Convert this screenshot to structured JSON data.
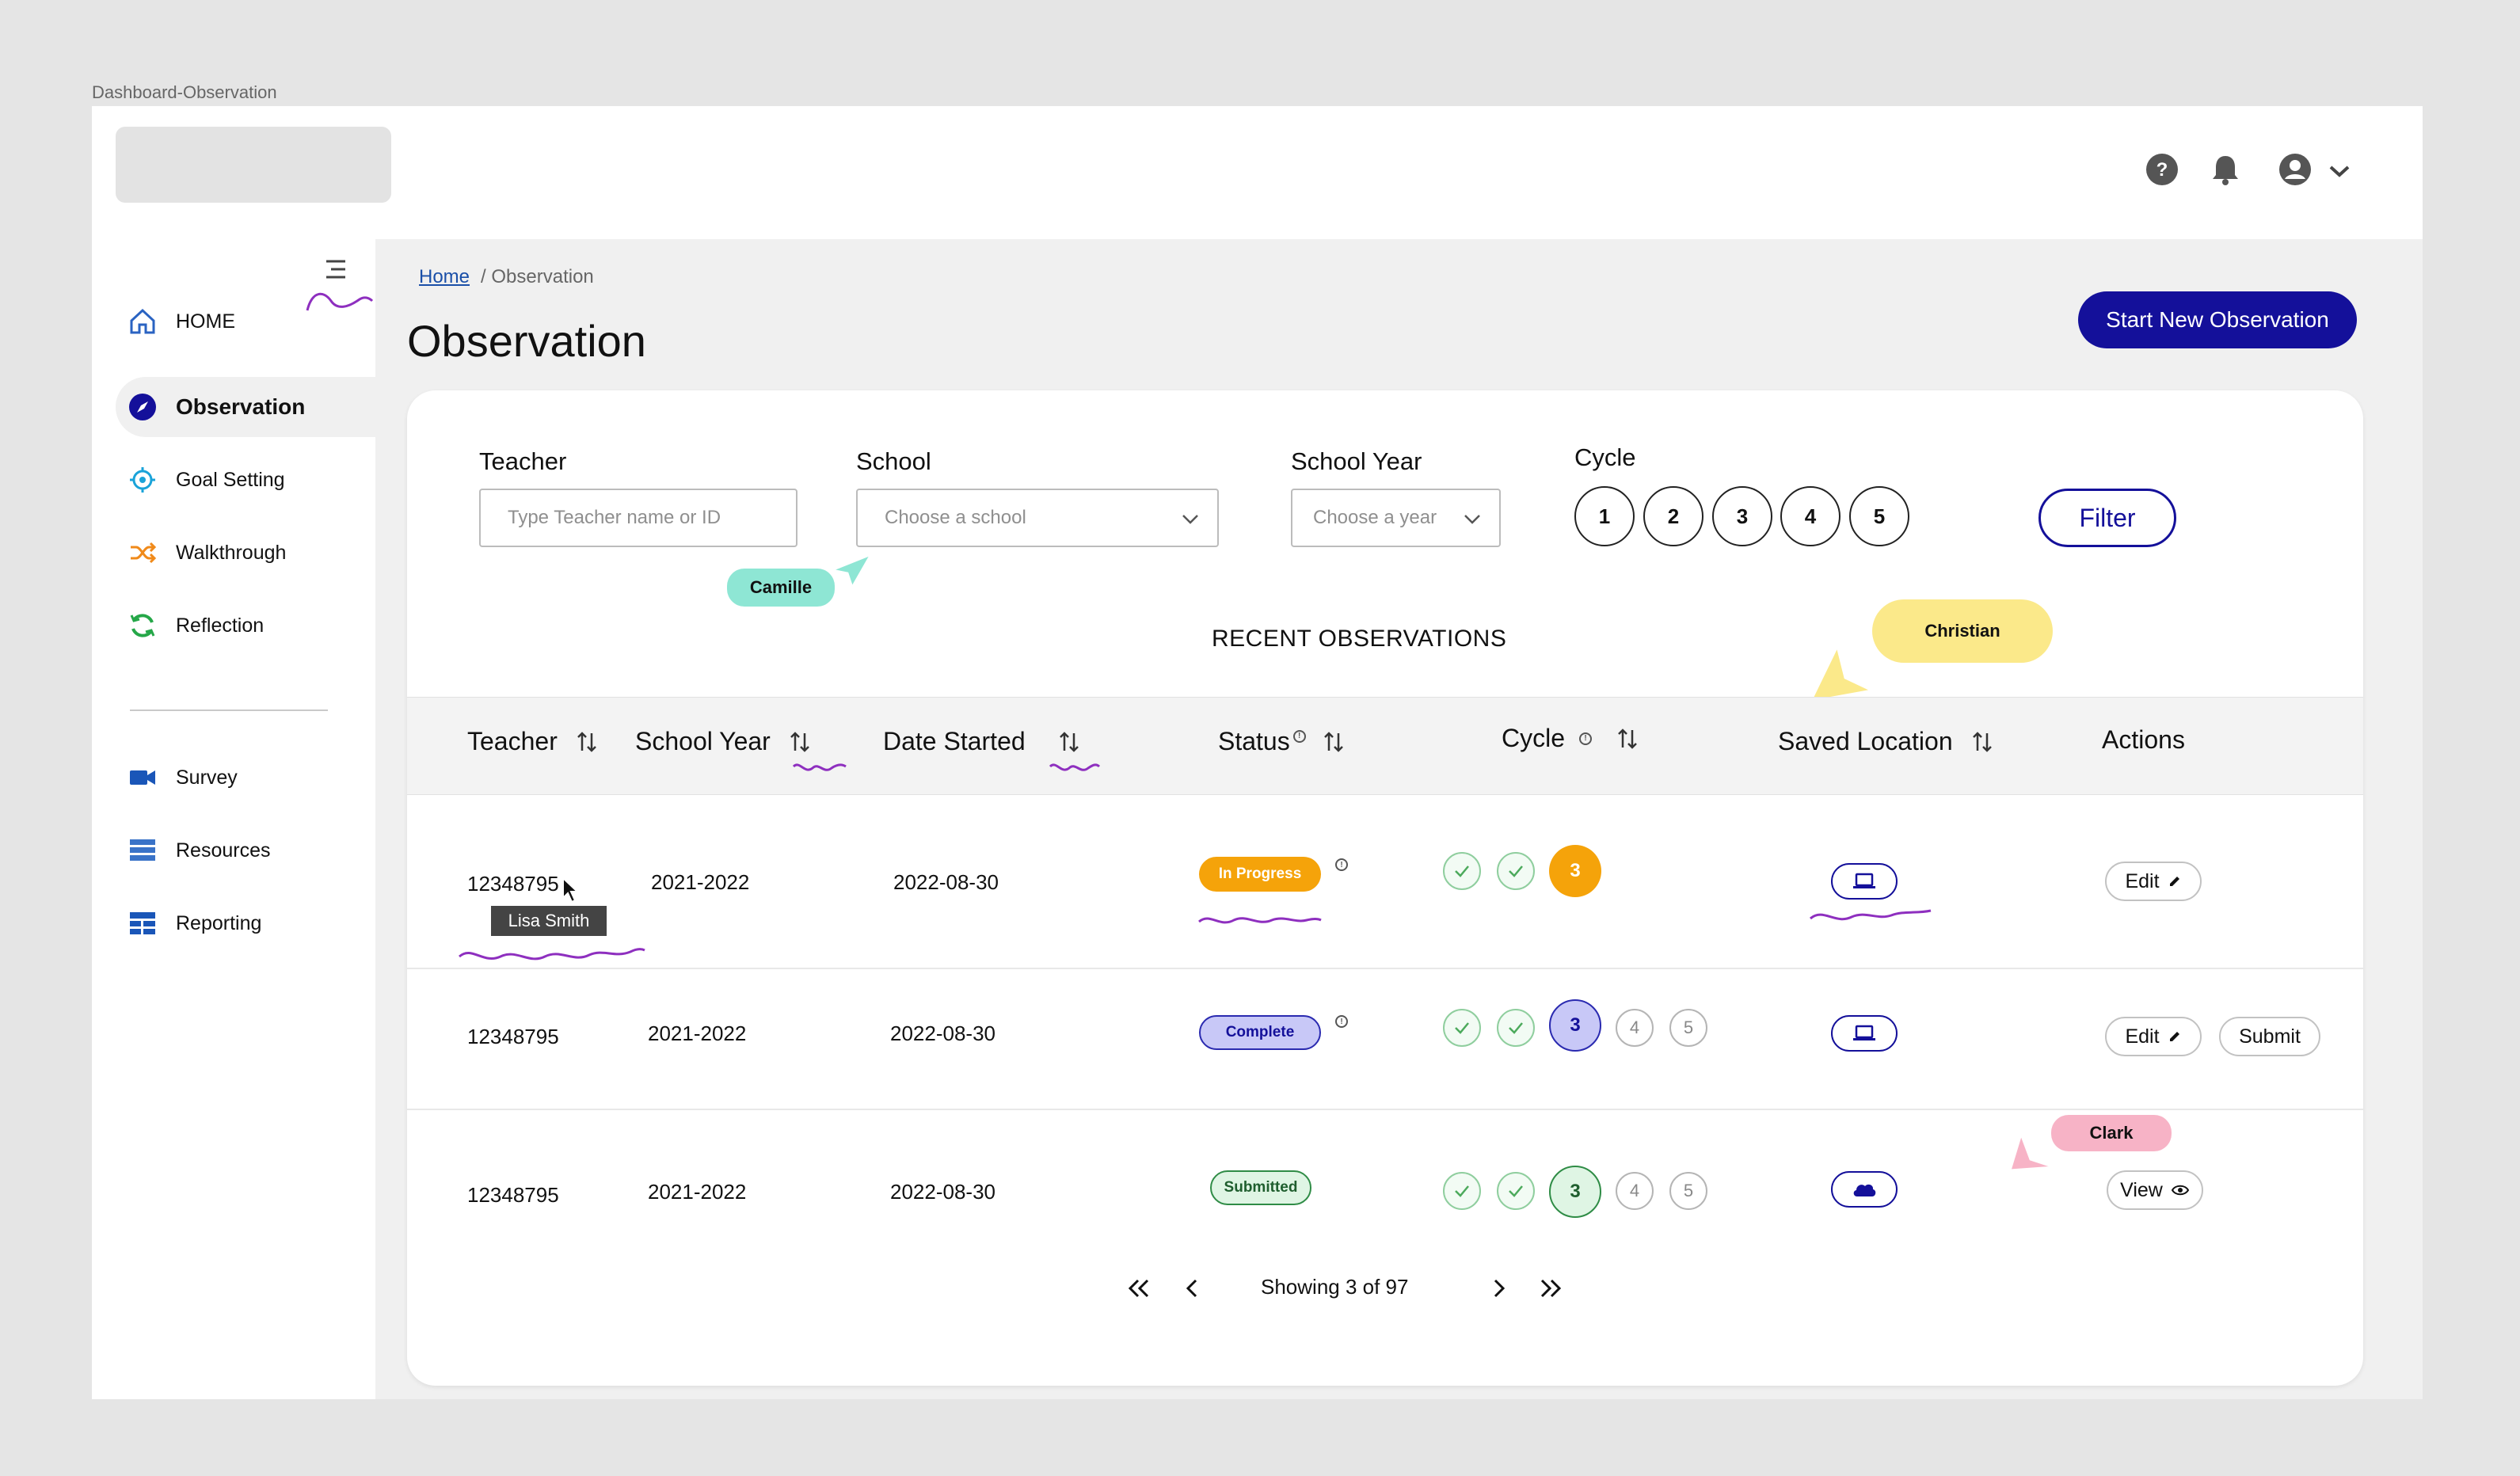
{
  "frame_label": "Dashboard-Observation",
  "breadcrumb": {
    "home": "Home",
    "current": "/ Observation"
  },
  "page_title": "Observation",
  "start_button": "Start New Observation",
  "nav": {
    "items": [
      {
        "label": "HOME",
        "icon": "home-icon"
      },
      {
        "label": "Observation",
        "icon": "compass-icon",
        "active": true
      },
      {
        "label": "Goal Setting",
        "icon": "target-icon"
      },
      {
        "label": "Walkthrough",
        "icon": "shuffle-icon"
      },
      {
        "label": "Reflection",
        "icon": "refresh-icon"
      },
      {
        "label": "Survey",
        "icon": "video-icon"
      },
      {
        "label": "Resources",
        "icon": "list-icon"
      },
      {
        "label": "Reporting",
        "icon": "table-icon"
      }
    ]
  },
  "filters": {
    "teacher_label": "Teacher",
    "teacher_placeholder": "Type Teacher name or ID",
    "school_label": "School",
    "school_placeholder": "Choose a school",
    "year_label": "School Year",
    "year_placeholder": "Choose a year",
    "cycle_label": "Cycle",
    "cycles": [
      "1",
      "2",
      "3",
      "4",
      "5"
    ],
    "filter_button": "Filter"
  },
  "section_title": "RECENT OBSERVATIONS",
  "table": {
    "headers": {
      "teacher": "Teacher",
      "school_year": "School Year",
      "date_started": "Date Started",
      "status": "Status",
      "cycle": "Cycle",
      "saved_location": "Saved Location",
      "actions": "Actions"
    },
    "rows": [
      {
        "teacher": "12348795",
        "school_year": "2021-2022",
        "date_started": "2022-08-30",
        "status": "In Progress",
        "cycle_current": "3",
        "location": "laptop-icon",
        "action1": "Edit"
      },
      {
        "teacher": "12348795",
        "school_year": "2021-2022",
        "date_started": "2022-08-30",
        "status": "Complete",
        "cycle_current": "3",
        "cycle_next": [
          "4",
          "5"
        ],
        "location": "laptop-icon",
        "action1": "Edit",
        "action2": "Submit"
      },
      {
        "teacher": "12348795",
        "school_year": "2021-2022",
        "date_started": "2022-08-30",
        "status": "Submitted",
        "cycle_current": "3",
        "cycle_next": [
          "4",
          "5"
        ],
        "location": "cloud-icon",
        "action1": "View"
      }
    ]
  },
  "tooltip": "Lisa Smith",
  "pagination": {
    "label": "Showing 3 of 97"
  },
  "collaborators": [
    {
      "name": "Camille",
      "color": "#8ee6d4"
    },
    {
      "name": "Christian",
      "color": "#fbe98a"
    },
    {
      "name": "Clark",
      "color": "#f7b3c6"
    }
  ],
  "colors": {
    "primary": "#14109a",
    "in_progress": "#f5a30a",
    "complete": "#c8c8f7",
    "submitted": "#dff5e4",
    "annotation": "#8e2fbf"
  }
}
